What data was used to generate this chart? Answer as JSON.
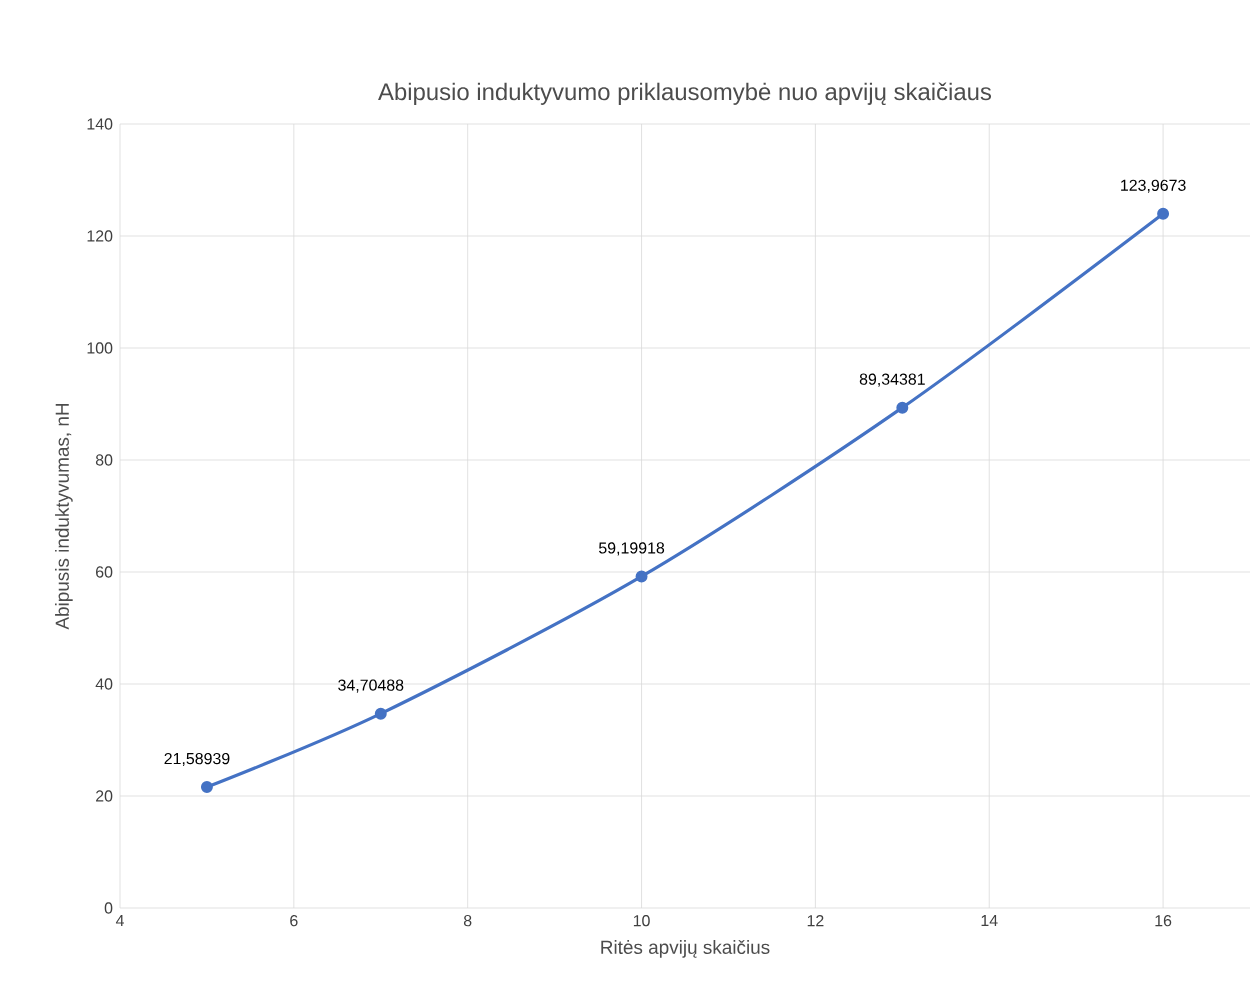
{
  "chart_data": {
    "type": "line",
    "title": "Abipusio induktyvumo priklausomybė nuo apvijų skaičiaus",
    "xlabel": "Ritės apvijų skaičius",
    "ylabel": "Abipusis induktyvumas, nH",
    "x": [
      5,
      7,
      10,
      13,
      16
    ],
    "series": [
      {
        "color": "#4472c4",
        "values": [
          21.58939,
          34.70488,
          59.19918,
          89.34381,
          123.9673
        ],
        "value_labels": [
          "21,58939",
          "34,70488",
          "59,19918",
          "89,34381",
          "123,9673"
        ]
      }
    ],
    "xlim": [
      4,
      17
    ],
    "ylim": [
      0,
      140
    ],
    "xticks": [
      4,
      6,
      8,
      10,
      12,
      14,
      16
    ],
    "yticks": [
      0,
      20,
      40,
      60,
      80,
      100,
      120,
      140
    ],
    "grid": true,
    "marker": "circle",
    "line_style": "solid",
    "legend": false
  }
}
